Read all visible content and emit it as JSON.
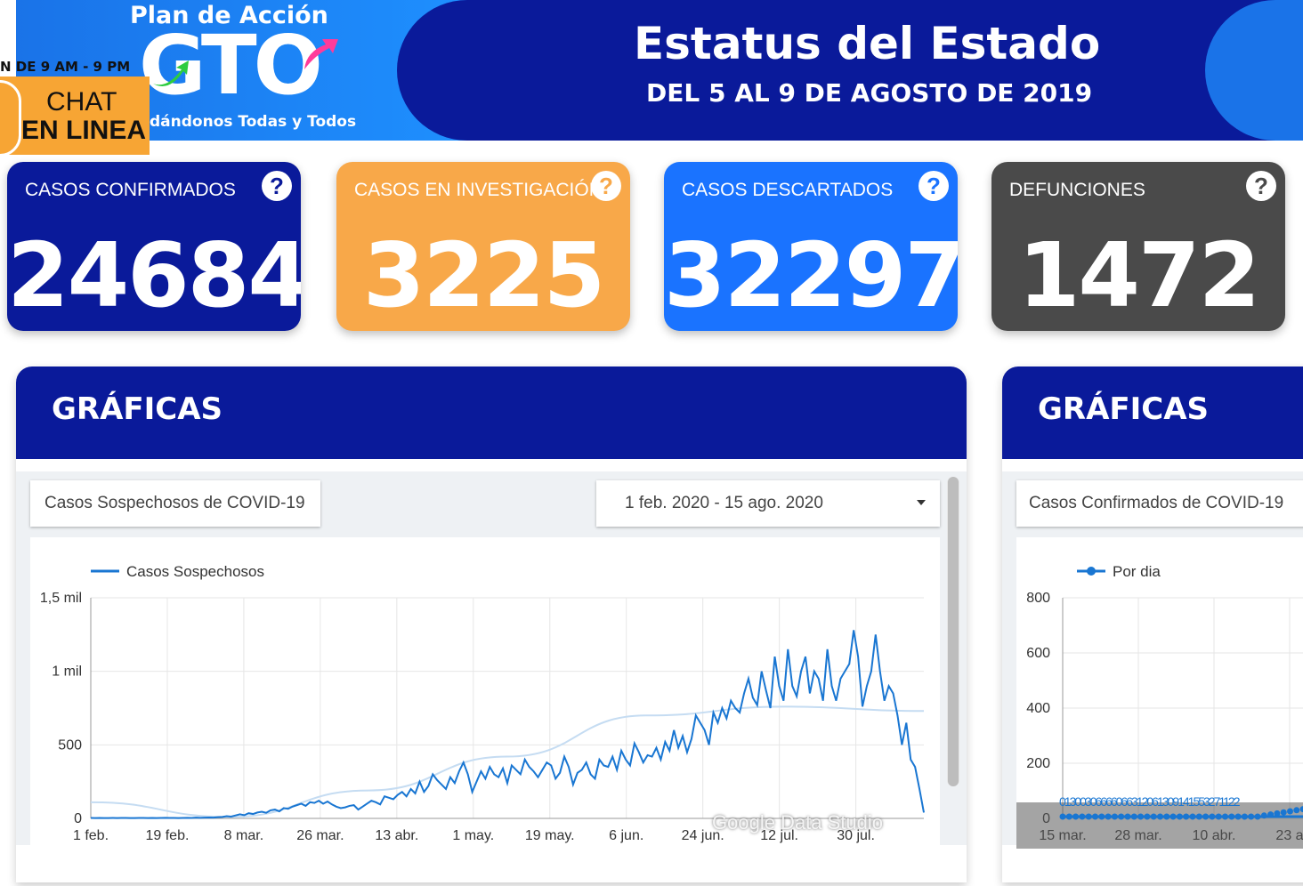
{
  "header": {
    "logo_title": "Plan de Acción",
    "logo_mark": "GTO",
    "logo_subtitle": "dándonos Todas y Todos",
    "hours": "N DE 9 AM - 9 PM",
    "chat_line1": "CHAT",
    "chat_line2": "EN LINEA",
    "title": "Estatus del Estado",
    "subtitle": "DEL 5 AL 9 DE AGOSTO DE 2019"
  },
  "cards": [
    {
      "label": "CASOS CONFIRMADOS",
      "value": "24684",
      "color": "#0a1a9a",
      "icon": "help-icon"
    },
    {
      "label": "CASOS EN INVESTIGACIÓN",
      "value": "3225",
      "color": "#f8a849",
      "icon": "help-icon"
    },
    {
      "label": "CASOS DESCARTADOS",
      "value": "32297",
      "color": "#1a73ff",
      "icon": "help-icon"
    },
    {
      "label": "DEFUNCIONES",
      "value": "1472",
      "color": "#4a4a4a",
      "icon": "help-icon"
    }
  ],
  "panels": [
    {
      "title": "GRÁFICAS",
      "chart_title": "Casos Sospechosos de COVID-19",
      "date_range": "1 feb. 2020 - 15 ago. 2020"
    },
    {
      "title": "GRÁFICAS",
      "chart_title": "Casos Confirmados de COVID-19"
    }
  ],
  "watermark": "Google Data Studio",
  "colors": {
    "navy": "#0a1a9a",
    "blue": "#1a73e8",
    "line": "#1976d2",
    "trend": "#c5dcf2"
  },
  "chart_data": [
    {
      "type": "line",
      "legend": "Casos Sospechosos",
      "ylim": [
        0,
        1500
      ],
      "yticks": [
        "0",
        "500",
        "1 mil",
        "1,5 mil"
      ],
      "ytick_values": [
        0,
        500,
        1000,
        1500
      ],
      "xticks": [
        "1 feb.",
        "19 feb.",
        "8 mar.",
        "26 mar.",
        "13 abr.",
        "1 may.",
        "19 may.",
        "6 jun.",
        "24 jun.",
        "12 jul.",
        "30 jul."
      ],
      "x_days": 196,
      "series_values": [
        3,
        2,
        3,
        2,
        2,
        3,
        2,
        3,
        3,
        2,
        2,
        3,
        3,
        2,
        3,
        2,
        3,
        4,
        3,
        3,
        2,
        3,
        4,
        3,
        5,
        4,
        5,
        6,
        5,
        8,
        10,
        15,
        12,
        20,
        28,
        22,
        35,
        30,
        40,
        45,
        38,
        55,
        60,
        48,
        70,
        65,
        80,
        90,
        100,
        85,
        110,
        105,
        120,
        100,
        115,
        95,
        80,
        70,
        75,
        85,
        90,
        60,
        80,
        100,
        120,
        110,
        95,
        150,
        140,
        130,
        160,
        180,
        150,
        200,
        170,
        250,
        180,
        220,
        300,
        260,
        230,
        200,
        280,
        240,
        320,
        380,
        300,
        180,
        250,
        320,
        270,
        350,
        300,
        280,
        340,
        240,
        360,
        330,
        300,
        400,
        350,
        320,
        280,
        330,
        380,
        360,
        270,
        310,
        420,
        350,
        230,
        310,
        330,
        380,
        300,
        270,
        400,
        360,
        350,
        420,
        330,
        460,
        400,
        360,
        510,
        450,
        380,
        430,
        420,
        480,
        400,
        520,
        460,
        600,
        480,
        560,
        450,
        540,
        700,
        650,
        600,
        500,
        720,
        650,
        750,
        680,
        800,
        750,
        720,
        850,
        950,
        820,
        770,
        1000,
        870,
        750,
        1100,
        900,
        800,
        1150,
        900,
        830,
        1000,
        1100,
        850,
        1000,
        950,
        800,
        1150,
        900,
        800,
        950,
        1000,
        1050,
        1280,
        1100,
        760,
        900,
        1000,
        1250,
        1000,
        800,
        900,
        850,
        700,
        500,
        650,
        400,
        350,
        200,
        40
      ],
      "trend_values": [
        110,
        10,
        190,
        420,
        700,
        760,
        730
      ]
    },
    {
      "type": "line",
      "legend": "Por dia",
      "ylim": [
        0,
        800
      ],
      "yticks": [
        "0",
        "200",
        "400",
        "600",
        "800"
      ],
      "ytick_values": [
        0,
        200,
        400,
        600,
        800
      ],
      "xticks": [
        "15 mar.",
        "28 mar.",
        "10 abr.",
        "23 a"
      ],
      "data_labels": "01300306666066312061309141553271122"
    }
  ]
}
